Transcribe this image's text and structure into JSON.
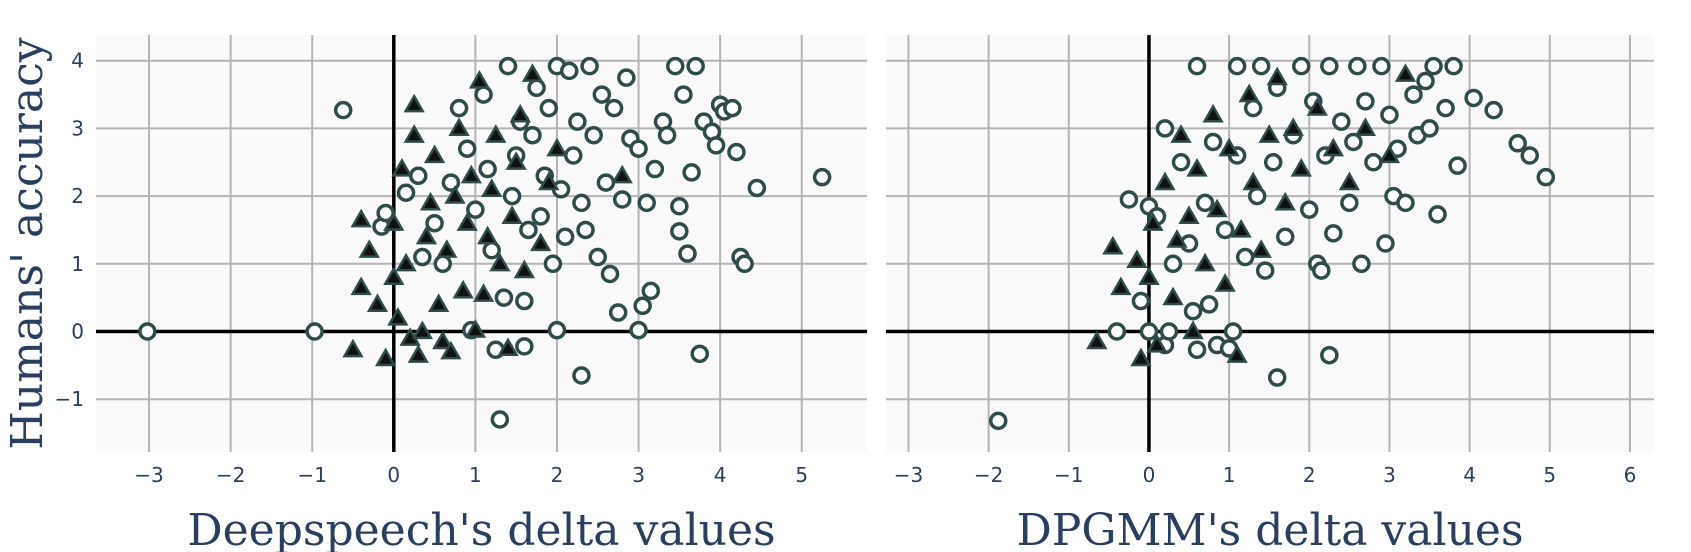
{
  "chart_data": [
    {
      "type": "scatter",
      "xlabel": "Deepspeech's delta values",
      "ylabel": "Humans' accuracy",
      "xlim": [
        -3.65,
        5.8
      ],
      "ylim": [
        -1.78,
        4.38
      ],
      "xticks": [
        -3,
        -2,
        -1,
        0,
        1,
        2,
        3,
        4,
        5
      ],
      "yticks": [
        -1,
        0,
        1,
        2,
        3,
        4
      ],
      "grid": true,
      "series": [
        {
          "marker": "circle-open",
          "points": [
            [
              -3.02,
              0.0
            ],
            [
              -0.97,
              0.0
            ],
            [
              -0.62,
              3.27
            ],
            [
              -0.15,
              1.55
            ],
            [
              -0.1,
              1.75
            ],
            [
              0.15,
              2.05
            ],
            [
              0.3,
              2.3
            ],
            [
              0.35,
              1.1
            ],
            [
              0.5,
              1.6
            ],
            [
              0.6,
              1.0
            ],
            [
              0.7,
              2.2
            ],
            [
              0.8,
              3.3
            ],
            [
              0.9,
              2.7
            ],
            [
              0.95,
              0.02
            ],
            [
              1.0,
              1.8
            ],
            [
              1.1,
              3.5
            ],
            [
              1.15,
              2.4
            ],
            [
              1.2,
              1.2
            ],
            [
              1.25,
              -0.27
            ],
            [
              1.3,
              -1.3
            ],
            [
              1.35,
              0.5
            ],
            [
              1.4,
              3.92
            ],
            [
              1.45,
              2.0
            ],
            [
              1.5,
              2.6
            ],
            [
              1.55,
              3.1
            ],
            [
              1.6,
              -0.22
            ],
            [
              1.6,
              0.45
            ],
            [
              1.65,
              1.5
            ],
            [
              1.7,
              2.9
            ],
            [
              1.75,
              3.6
            ],
            [
              1.8,
              1.7
            ],
            [
              1.85,
              2.3
            ],
            [
              1.9,
              3.3
            ],
            [
              1.95,
              1.0
            ],
            [
              2.0,
              3.92
            ],
            [
              2.0,
              0.02
            ],
            [
              2.05,
              2.1
            ],
            [
              2.1,
              1.4
            ],
            [
              2.15,
              3.85
            ],
            [
              2.2,
              2.6
            ],
            [
              2.25,
              3.1
            ],
            [
              2.3,
              -0.65
            ],
            [
              2.3,
              1.9
            ],
            [
              2.35,
              1.5
            ],
            [
              2.4,
              3.92
            ],
            [
              2.45,
              2.9
            ],
            [
              2.5,
              1.1
            ],
            [
              2.55,
              3.5
            ],
            [
              2.6,
              2.2
            ],
            [
              2.65,
              0.85
            ],
            [
              2.7,
              3.3
            ],
            [
              2.75,
              0.28
            ],
            [
              2.8,
              1.95
            ],
            [
              2.85,
              3.75
            ],
            [
              2.9,
              2.85
            ],
            [
              3.0,
              0.02
            ],
            [
              3.0,
              2.7
            ],
            [
              3.05,
              0.38
            ],
            [
              3.1,
              1.9
            ],
            [
              3.15,
              0.6
            ],
            [
              3.2,
              2.4
            ],
            [
              3.3,
              3.1
            ],
            [
              3.35,
              2.9
            ],
            [
              3.45,
              3.92
            ],
            [
              3.5,
              1.85
            ],
            [
              3.5,
              1.48
            ],
            [
              3.55,
              3.5
            ],
            [
              3.6,
              1.15
            ],
            [
              3.65,
              2.35
            ],
            [
              3.7,
              3.92
            ],
            [
              3.75,
              -0.33
            ],
            [
              3.8,
              3.1
            ],
            [
              3.9,
              2.95
            ],
            [
              3.95,
              2.75
            ],
            [
              4.0,
              3.35
            ],
            [
              4.05,
              3.25
            ],
            [
              4.15,
              3.3
            ],
            [
              4.2,
              2.65
            ],
            [
              4.25,
              1.1
            ],
            [
              4.3,
              1.0
            ],
            [
              4.45,
              2.12
            ],
            [
              5.25,
              2.28
            ]
          ]
        },
        {
          "marker": "triangle-up",
          "points": [
            [
              -0.5,
              -0.27
            ],
            [
              -0.4,
              0.65
            ],
            [
              -0.4,
              1.65
            ],
            [
              -0.3,
              1.2
            ],
            [
              -0.2,
              0.4
            ],
            [
              -0.1,
              -0.4
            ],
            [
              0.0,
              0.8
            ],
            [
              0.0,
              1.6
            ],
            [
              0.05,
              0.2
            ],
            [
              0.1,
              2.4
            ],
            [
              0.15,
              1.0
            ],
            [
              0.2,
              -0.1
            ],
            [
              0.25,
              2.9
            ],
            [
              0.25,
              3.35
            ],
            [
              0.3,
              -0.35
            ],
            [
              0.35,
              0.0
            ],
            [
              0.4,
              1.4
            ],
            [
              0.45,
              1.9
            ],
            [
              0.5,
              2.6
            ],
            [
              0.55,
              0.4
            ],
            [
              0.6,
              -0.15
            ],
            [
              0.65,
              1.2
            ],
            [
              0.7,
              -0.3
            ],
            [
              0.75,
              2.0
            ],
            [
              0.8,
              3.0
            ],
            [
              0.85,
              0.6
            ],
            [
              0.9,
              1.6
            ],
            [
              0.95,
              2.3
            ],
            [
              1.0,
              0.02
            ],
            [
              1.05,
              3.7
            ],
            [
              1.1,
              0.55
            ],
            [
              1.15,
              1.4
            ],
            [
              1.2,
              2.1
            ],
            [
              1.25,
              2.9
            ],
            [
              1.3,
              1.0
            ],
            [
              1.4,
              -0.25
            ],
            [
              1.45,
              1.7
            ],
            [
              1.5,
              2.5
            ],
            [
              1.55,
              3.2
            ],
            [
              1.6,
              0.9
            ],
            [
              1.7,
              3.8
            ],
            [
              1.8,
              1.3
            ],
            [
              1.9,
              2.2
            ],
            [
              2.0,
              2.7
            ],
            [
              2.8,
              2.3
            ]
          ]
        }
      ]
    },
    {
      "type": "scatter",
      "xlabel": "DPGMM's delta values",
      "xlim": [
        -3.28,
        6.3
      ],
      "ylim": [
        -1.78,
        4.38
      ],
      "xticks": [
        -3,
        -2,
        -1,
        0,
        1,
        2,
        3,
        4,
        5,
        6
      ],
      "yticks": [
        -1,
        0,
        1,
        2,
        3,
        4
      ],
      "grid": true,
      "series": [
        {
          "marker": "circle-open",
          "points": [
            [
              -1.88,
              -1.32
            ],
            [
              -0.4,
              0.0
            ],
            [
              -0.25,
              1.95
            ],
            [
              -0.1,
              0.45
            ],
            [
              0.0,
              1.85
            ],
            [
              0.0,
              0.0
            ],
            [
              0.1,
              1.7
            ],
            [
              0.2,
              -0.2
            ],
            [
              0.2,
              3.0
            ],
            [
              0.25,
              0.0
            ],
            [
              0.3,
              1.0
            ],
            [
              0.4,
              2.5
            ],
            [
              0.5,
              1.3
            ],
            [
              0.55,
              0.3
            ],
            [
              0.6,
              -0.27
            ],
            [
              0.6,
              3.92
            ],
            [
              0.7,
              1.9
            ],
            [
              0.75,
              0.4
            ],
            [
              0.8,
              2.8
            ],
            [
              0.85,
              -0.2
            ],
            [
              0.95,
              1.5
            ],
            [
              1.0,
              -0.25
            ],
            [
              1.05,
              0.0
            ],
            [
              1.1,
              2.6
            ],
            [
              1.1,
              3.92
            ],
            [
              1.2,
              1.1
            ],
            [
              1.3,
              3.3
            ],
            [
              1.35,
              2.0
            ],
            [
              1.4,
              3.92
            ],
            [
              1.45,
              0.9
            ],
            [
              1.55,
              2.5
            ],
            [
              1.6,
              3.6
            ],
            [
              1.6,
              -0.68
            ],
            [
              1.7,
              1.4
            ],
            [
              1.8,
              2.9
            ],
            [
              1.9,
              3.92
            ],
            [
              2.0,
              1.8
            ],
            [
              2.05,
              3.4
            ],
            [
              2.1,
              1.0
            ],
            [
              2.15,
              0.9
            ],
            [
              2.2,
              2.6
            ],
            [
              2.25,
              3.92
            ],
            [
              2.25,
              -0.35
            ],
            [
              2.3,
              1.45
            ],
            [
              2.4,
              3.1
            ],
            [
              2.5,
              1.9
            ],
            [
              2.55,
              2.8
            ],
            [
              2.6,
              3.92
            ],
            [
              2.65,
              1.0
            ],
            [
              2.7,
              3.4
            ],
            [
              2.8,
              2.5
            ],
            [
              2.9,
              3.92
            ],
            [
              2.95,
              1.3
            ],
            [
              3.0,
              3.2
            ],
            [
              3.05,
              2.0
            ],
            [
              3.1,
              2.7
            ],
            [
              3.2,
              1.9
            ],
            [
              3.3,
              3.5
            ],
            [
              3.35,
              2.9
            ],
            [
              3.45,
              3.7
            ],
            [
              3.5,
              3.0
            ],
            [
              3.55,
              3.92
            ],
            [
              3.6,
              1.73
            ],
            [
              3.7,
              3.3
            ],
            [
              3.8,
              3.92
            ],
            [
              3.85,
              2.45
            ],
            [
              4.05,
              3.45
            ],
            [
              4.3,
              3.27
            ],
            [
              4.6,
              2.78
            ],
            [
              4.75,
              2.6
            ],
            [
              4.95,
              2.28
            ]
          ]
        },
        {
          "marker": "triangle-up",
          "points": [
            [
              -0.65,
              -0.15
            ],
            [
              -0.45,
              1.25
            ],
            [
              -0.35,
              0.65
            ],
            [
              -0.15,
              1.05
            ],
            [
              -0.1,
              -0.4
            ],
            [
              0.0,
              0.8
            ],
            [
              0.05,
              1.6
            ],
            [
              0.1,
              -0.2
            ],
            [
              0.2,
              2.2
            ],
            [
              0.3,
              0.5
            ],
            [
              0.35,
              1.35
            ],
            [
              0.4,
              2.9
            ],
            [
              0.5,
              1.7
            ],
            [
              0.55,
              0.0
            ],
            [
              0.6,
              2.4
            ],
            [
              0.7,
              1.0
            ],
            [
              0.8,
              3.2
            ],
            [
              0.85,
              1.8
            ],
            [
              0.95,
              0.7
            ],
            [
              1.0,
              2.7
            ],
            [
              1.1,
              -0.35
            ],
            [
              1.15,
              1.5
            ],
            [
              1.25,
              3.5
            ],
            [
              1.3,
              2.2
            ],
            [
              1.4,
              1.2
            ],
            [
              1.5,
              2.9
            ],
            [
              1.6,
              3.75
            ],
            [
              1.7,
              1.9
            ],
            [
              1.8,
              3.0
            ],
            [
              1.9,
              2.4
            ],
            [
              2.1,
              3.3
            ],
            [
              2.3,
              2.7
            ],
            [
              2.5,
              2.2
            ],
            [
              2.7,
              3.0
            ],
            [
              3.0,
              2.6
            ],
            [
              3.2,
              3.8
            ]
          ]
        }
      ]
    }
  ],
  "colors": {
    "marker": "#2f4b4a",
    "marker_fill_open": "#ffffff",
    "plot_bg": "#fafafa",
    "grid": "#b4b4b4",
    "zero_line": "#000000",
    "text": "#2a3f5f"
  }
}
